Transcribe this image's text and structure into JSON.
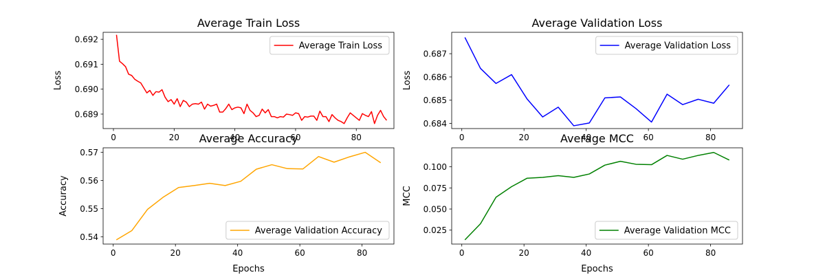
{
  "chart_data": [
    {
      "type": "line",
      "title": "Average Train Loss",
      "xlabel": "",
      "ylabel": "Loss",
      "xlim": [
        -3.4,
        92.4
      ],
      "ylim": [
        0.68842,
        0.69228
      ],
      "xticks": [
        0,
        20,
        40,
        60,
        80
      ],
      "yticks": [
        0.689,
        0.69,
        0.691,
        0.692
      ],
      "ytick_labels": [
        "0.689",
        "0.690",
        "0.691",
        "0.692"
      ],
      "legend_position": "upper right",
      "grid": false,
      "series": [
        {
          "name": "Average Train Loss",
          "color": "#ff0000",
          "x": [
            1,
            2,
            3,
            4,
            5,
            6,
            7,
            8,
            9,
            10,
            11,
            12,
            13,
            14,
            15,
            16,
            17,
            18,
            19,
            20,
            21,
            22,
            23,
            24,
            25,
            26,
            27,
            28,
            29,
            30,
            31,
            32,
            33,
            34,
            35,
            36,
            37,
            38,
            39,
            40,
            41,
            42,
            43,
            44,
            45,
            46,
            47,
            48,
            49,
            50,
            51,
            52,
            53,
            54,
            55,
            56,
            57,
            58,
            59,
            60,
            61,
            62,
            63,
            64,
            65,
            66,
            67,
            68,
            69,
            70,
            71,
            72,
            73,
            74,
            75,
            76,
            77,
            78,
            79,
            80,
            81,
            82,
            83,
            84,
            85,
            86,
            87,
            88,
            89,
            90
          ],
          "y": [
            0.69218,
            0.69112,
            0.69102,
            0.6909,
            0.6906,
            0.69055,
            0.6904,
            0.69032,
            0.69025,
            0.69005,
            0.68985,
            0.68995,
            0.68975,
            0.6899,
            0.68988,
            0.68998,
            0.68968,
            0.6895,
            0.68958,
            0.6894,
            0.68962,
            0.6893,
            0.68955,
            0.68948,
            0.6893,
            0.6894,
            0.68942,
            0.6894,
            0.68948,
            0.6892,
            0.6894,
            0.68932,
            0.68935,
            0.6894,
            0.68908,
            0.68908,
            0.68922,
            0.6894,
            0.68918,
            0.68925,
            0.68928,
            0.68925,
            0.68902,
            0.6894,
            0.68915,
            0.68905,
            0.6889,
            0.68895,
            0.6892,
            0.68905,
            0.68918,
            0.6889,
            0.6889,
            0.68885,
            0.6889,
            0.68888,
            0.689,
            0.68898,
            0.68895,
            0.68905,
            0.68902,
            0.68875,
            0.6889,
            0.68888,
            0.68892,
            0.68892,
            0.68875,
            0.68912,
            0.6889,
            0.6889,
            0.6887,
            0.68898,
            0.68885,
            0.68875,
            0.6887,
            0.68862,
            0.68885,
            0.68905,
            0.68895,
            0.68885,
            0.68875,
            0.68902,
            0.68895,
            0.6889,
            0.6891,
            0.68862,
            0.68895,
            0.68915,
            0.6889,
            0.68875
          ]
        }
      ]
    },
    {
      "type": "line",
      "title": "Average Validation Loss",
      "xlabel": "",
      "ylabel": "Loss",
      "xlim": [
        -3.25,
        90.25
      ],
      "ylim": [
        0.68378,
        0.68792
      ],
      "xticks": [
        0,
        20,
        40,
        60,
        80
      ],
      "yticks": [
        0.684,
        0.685,
        0.686,
        0.687
      ],
      "ytick_labels": [
        "0.684",
        "0.685",
        "0.686",
        "0.687"
      ],
      "legend_position": "upper right",
      "grid": false,
      "series": [
        {
          "name": "Average Validation Loss",
          "color": "#0000ff",
          "x": [
            1,
            6,
            11,
            16,
            21,
            26,
            31,
            36,
            41,
            46,
            51,
            56,
            61,
            66,
            71,
            76,
            81,
            86
          ],
          "y": [
            0.6877,
            0.68637,
            0.68572,
            0.6861,
            0.68505,
            0.68428,
            0.6847,
            0.6839,
            0.68402,
            0.6851,
            0.68514,
            0.68464,
            0.68406,
            0.68526,
            0.68481,
            0.68504,
            0.68487,
            0.68566
          ]
        }
      ]
    },
    {
      "type": "line",
      "title": "Average Accuracy",
      "xlabel": "Epochs",
      "ylabel": "Accuracy",
      "xlim": [
        -3.25,
        90.25
      ],
      "ylim": [
        0.5374,
        0.5716
      ],
      "xticks": [
        0,
        20,
        40,
        60,
        80
      ],
      "yticks": [
        0.54,
        0.55,
        0.56,
        0.57
      ],
      "ytick_labels": [
        "0.54",
        "0.55",
        "0.56",
        "0.57"
      ],
      "legend_position": "lower right",
      "grid": false,
      "series": [
        {
          "name": "Average Validation Accuracy",
          "color": "#ffa500",
          "x": [
            1,
            6,
            11,
            16,
            21,
            26,
            31,
            36,
            41,
            46,
            51,
            56,
            61,
            66,
            71,
            76,
            81,
            86
          ],
          "y": [
            0.5389,
            0.5422,
            0.5497,
            0.554,
            0.5575,
            0.5582,
            0.559,
            0.5582,
            0.5597,
            0.564,
            0.5656,
            0.5642,
            0.5641,
            0.5685,
            0.5665,
            0.5684,
            0.57,
            0.5663
          ]
        }
      ]
    },
    {
      "type": "line",
      "title": "Average MCC",
      "xlabel": "Epochs",
      "ylabel": "MCC",
      "xlim": [
        -3.25,
        90.25
      ],
      "ylim": [
        0.0085,
        0.1225
      ],
      "xticks": [
        0,
        20,
        40,
        60,
        80
      ],
      "yticks": [
        0.025,
        0.05,
        0.075,
        0.1
      ],
      "ytick_labels": [
        "0.025",
        "0.050",
        "0.075",
        "0.100"
      ],
      "legend_position": "lower right",
      "grid": false,
      "series": [
        {
          "name": "Average Validation MCC",
          "color": "#008000",
          "x": [
            1,
            6,
            11,
            16,
            21,
            26,
            31,
            36,
            41,
            46,
            51,
            56,
            61,
            66,
            71,
            76,
            81,
            86
          ],
          "y": [
            0.0135,
            0.0325,
            0.064,
            0.0765,
            0.0865,
            0.0875,
            0.0895,
            0.0875,
            0.0915,
            0.102,
            0.1065,
            0.103,
            0.1025,
            0.1135,
            0.109,
            0.1135,
            0.117,
            0.108
          ]
        }
      ]
    }
  ]
}
